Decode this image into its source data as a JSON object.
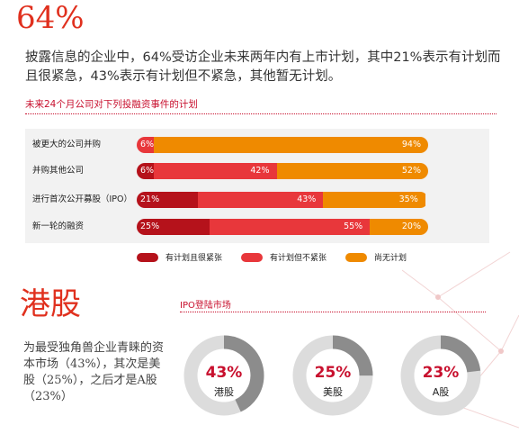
{
  "headline": {
    "value": "64%",
    "description": "披露信息的企业中，64%受访企业未来两年内有上市计划，其中21%表示有计划而且很紧急，43%表示有计划但不紧急，其他暂无计划。"
  },
  "section1": {
    "title": "未来24个月公司对下列投融资事件的计划"
  },
  "chart_data": [
    {
      "type": "bar",
      "orientation": "horizontal-stacked-100",
      "title": "未来24个月公司对下列投融资事件的计划",
      "categories": [
        "被更大的公司并购",
        "并购其他公司",
        "进行首次公开募股（IPO）",
        "新一轮的融资"
      ],
      "series": [
        {
          "name": "有计划且很紧张",
          "values": [
            0,
            6,
            21,
            25
          ],
          "color": "#b5121b"
        },
        {
          "name": "有计划但不紧张",
          "values": [
            6,
            42,
            43,
            55
          ],
          "color": "#e8373b"
        },
        {
          "name": "尚无计划",
          "values": [
            94,
            52,
            35,
            20
          ],
          "color": "#ef8a00"
        }
      ],
      "segment_labels": [
        [
          "",
          "6%",
          "94%"
        ],
        [
          "6%",
          "42%",
          "52%"
        ],
        [
          "21%",
          "43%",
          "35%"
        ],
        [
          "25%",
          "55%",
          "20%"
        ]
      ],
      "legend_position": "bottom"
    },
    {
      "type": "pie",
      "variant": "donut",
      "title": "IPO登陆市场",
      "categories": [
        "港股",
        "美股",
        "A股"
      ],
      "values": [
        43,
        25,
        23
      ],
      "value_labels": [
        "43%",
        "25%",
        "23%"
      ],
      "colors": {
        "fill": "#8c8c8c",
        "remainder": "#dcdcdc"
      }
    }
  ],
  "hk": {
    "title": "港股",
    "description": "为最受独角兽企业青睐的资本市场（43%），其次是美股（25%），之后才是A股（23%）"
  }
}
